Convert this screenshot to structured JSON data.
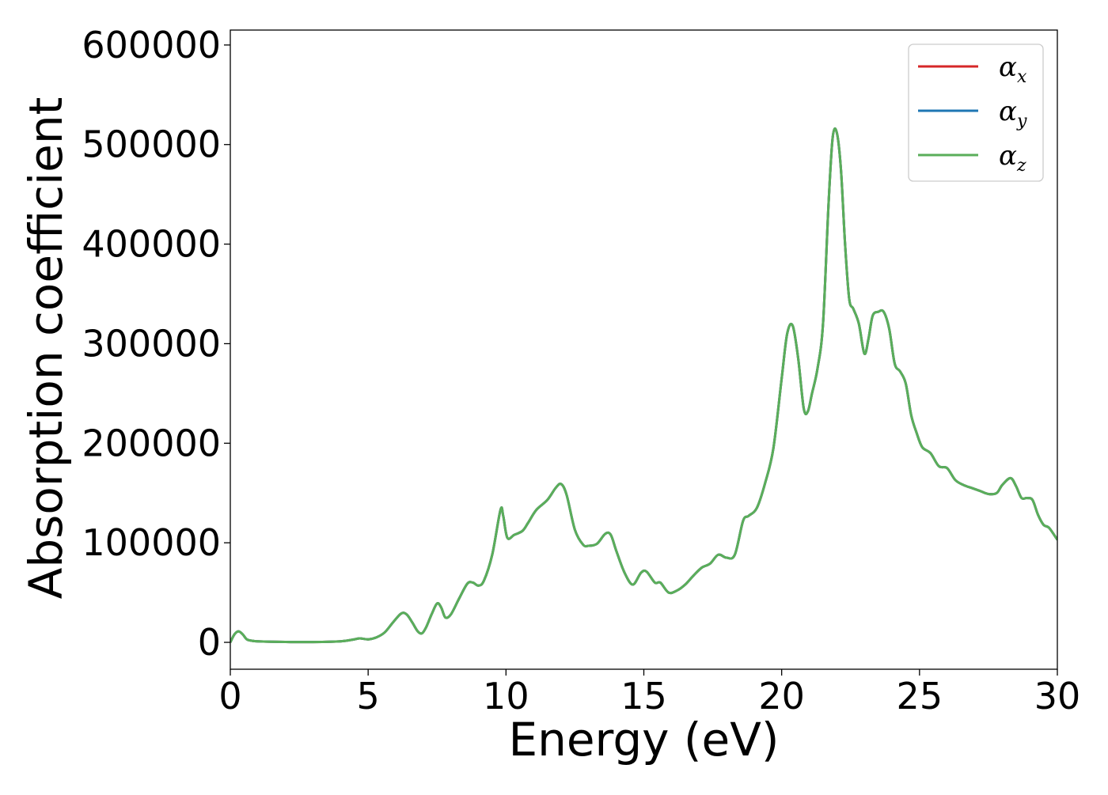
{
  "chart_data": {
    "type": "line",
    "title": "",
    "xlabel": "Energy (eV)",
    "ylabel": "Absorption coefficient",
    "xlim": [
      0,
      30
    ],
    "ylim": [
      -27000,
      615000
    ],
    "xticks": [
      0,
      5,
      10,
      15,
      20,
      25,
      30
    ],
    "yticks": [
      0,
      100000,
      200000,
      300000,
      400000,
      500000,
      600000
    ],
    "grid": false,
    "legend_position": "top-right",
    "series": [
      {
        "name": "αx",
        "base": "α",
        "sub": "x",
        "color": "#d62728"
      },
      {
        "name": "αy",
        "base": "α",
        "sub": "y",
        "color": "#1f77b4"
      },
      {
        "name": "αz",
        "base": "α",
        "sub": "z",
        "color": "#5aae5a"
      }
    ],
    "x": [
      0,
      0.15,
      0.3,
      0.45,
      0.6,
      0.8,
      1.0,
      1.5,
      2.0,
      3.0,
      4.0,
      4.5,
      4.7,
      5.0,
      5.3,
      5.6,
      5.9,
      6.2,
      6.4,
      6.6,
      6.8,
      6.95,
      7.1,
      7.3,
      7.5,
      7.65,
      7.8,
      8.0,
      8.3,
      8.6,
      8.8,
      9.0,
      9.2,
      9.5,
      9.8,
      9.9,
      10.05,
      10.3,
      10.6,
      10.8,
      11.1,
      11.5,
      11.8,
      12.0,
      12.2,
      12.5,
      12.8,
      13.0,
      13.3,
      13.6,
      13.8,
      14.0,
      14.3,
      14.6,
      14.9,
      15.1,
      15.4,
      15.6,
      15.9,
      16.2,
      16.5,
      16.8,
      17.1,
      17.4,
      17.7,
      18.0,
      18.3,
      18.6,
      18.8,
      19.1,
      19.4,
      19.7,
      20.0,
      20.2,
      20.4,
      20.6,
      20.8,
      20.95,
      21.1,
      21.3,
      21.5,
      21.7,
      21.85,
      22.0,
      22.15,
      22.3,
      22.45,
      22.6,
      22.8,
      23.0,
      23.15,
      23.3,
      23.5,
      23.7,
      23.9,
      24.1,
      24.3,
      24.5,
      24.7,
      24.9,
      25.1,
      25.4,
      25.7,
      26.0,
      26.3,
      26.6,
      26.9,
      27.2,
      27.5,
      27.8,
      28.0,
      28.3,
      28.5,
      28.7,
      28.9,
      29.1,
      29.3,
      29.5,
      29.7,
      30.0
    ],
    "y": [
      0,
      8000,
      11000,
      8000,
      3000,
      1500,
      1000,
      600,
      400,
      300,
      1000,
      3000,
      4000,
      3000,
      5000,
      10000,
      20000,
      29000,
      28000,
      20000,
      11000,
      9000,
      15000,
      28000,
      39000,
      35000,
      25000,
      28000,
      44000,
      59000,
      60000,
      57000,
      62000,
      88000,
      133000,
      127000,
      105000,
      108000,
      112000,
      120000,
      133000,
      143000,
      155000,
      159000,
      148000,
      113000,
      98000,
      97000,
      99000,
      109000,
      108000,
      92000,
      70000,
      58000,
      70000,
      71000,
      60000,
      60000,
      50000,
      52000,
      58000,
      67000,
      75000,
      79000,
      88000,
      85000,
      88000,
      122000,
      127000,
      135000,
      160000,
      195000,
      265000,
      310000,
      318000,
      285000,
      235000,
      232000,
      250000,
      275000,
      320000,
      440000,
      507000,
      512000,
      475000,
      400000,
      345000,
      335000,
      320000,
      290000,
      305000,
      328000,
      332000,
      332000,
      315000,
      280000,
      272000,
      260000,
      228000,
      210000,
      196000,
      190000,
      177000,
      175000,
      163000,
      158000,
      155000,
      152000,
      149000,
      150000,
      158000,
      165000,
      157000,
      145000,
      145000,
      143000,
      128000,
      118000,
      115000,
      103000
    ]
  }
}
